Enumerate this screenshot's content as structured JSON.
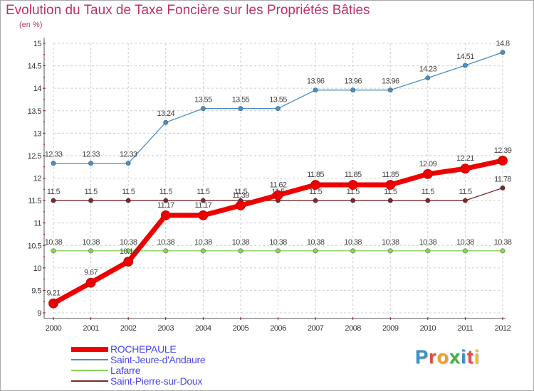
{
  "chart_data": {
    "type": "line",
    "title": "Evolution du Taux de Taxe Foncière sur les Propriétés Bâties",
    "subtitle": "(en %)",
    "categories": [
      "2000",
      "2001",
      "2002",
      "2003",
      "2004",
      "2005",
      "2006",
      "2007",
      "2008",
      "2009",
      "2010",
      "2011",
      "2012"
    ],
    "ylim": [
      9,
      15
    ],
    "yticks": [
      "9",
      "9.5",
      "10",
      "10.5",
      "11",
      "11.5",
      "12",
      "12.5",
      "13",
      "13.5",
      "14",
      "14.5",
      "15"
    ],
    "grid": true,
    "legend_position": "bottom",
    "series": [
      {
        "name": "ROCHEPAULE",
        "color": "#ee0000",
        "emphasis": true,
        "values": [
          9.21,
          9.67,
          10.14,
          11.17,
          11.17,
          11.39,
          11.62,
          11.85,
          11.85,
          11.85,
          12.09,
          12.21,
          12.39
        ],
        "labels": [
          "9.21",
          "9.67",
          "10.14",
          "11.17",
          "11.17",
          "11.39",
          "11.62",
          "11.85",
          "11.85",
          "11.85",
          "12.09",
          "12.21",
          "12.39"
        ]
      },
      {
        "name": "Saint-Jeure-d'Andaure",
        "color": "#4a8ec4",
        "emphasis": false,
        "values": [
          12.33,
          12.33,
          12.33,
          13.24,
          13.55,
          13.55,
          13.55,
          13.96,
          13.96,
          13.96,
          14.23,
          14.51,
          14.8
        ],
        "labels": [
          "12.33",
          "12.33",
          "12.33",
          "13.24",
          "13.55",
          "13.55",
          "13.55",
          "13.96",
          "13.96",
          "13.96",
          "14.23",
          "14.51",
          "14.8"
        ]
      },
      {
        "name": "Lafarre",
        "color": "#88d45a",
        "emphasis": false,
        "values": [
          10.38,
          10.38,
          10.38,
          10.38,
          10.38,
          10.38,
          10.38,
          10.38,
          10.38,
          10.38,
          10.38,
          10.38,
          10.38
        ],
        "labels": [
          "10.38",
          "10.38",
          "10.38",
          "10.38",
          "10.38",
          "10.38",
          "10.38",
          "10.38",
          "10.38",
          "10.38",
          "10.38",
          "10.38",
          "10.38"
        ]
      },
      {
        "name": "Saint-Pierre-sur-Doux",
        "color": "#7a2a2a",
        "emphasis": false,
        "values": [
          11.5,
          11.5,
          11.5,
          11.5,
          11.5,
          11.5,
          11.5,
          11.5,
          11.5,
          11.5,
          11.5,
          11.5,
          11.78
        ],
        "labels": [
          "11.5",
          "11.5",
          "11.5",
          "11.5",
          "11.5",
          "11.5",
          "11.5",
          "11.5",
          "11.5",
          "11.5",
          "11.5",
          "11.5",
          "11.78"
        ]
      }
    ]
  },
  "logo": {
    "text": "Proxiti",
    "letters": [
      {
        "char": "P",
        "color": "#3a8fd0"
      },
      {
        "char": "r",
        "color": "#e84c3d"
      },
      {
        "char": "o",
        "color": "#f0a020"
      },
      {
        "char": "x",
        "color": "#45b045"
      },
      {
        "char": "i",
        "color": "#3a8fd0"
      },
      {
        "char": "t",
        "color": "#e84c3d"
      },
      {
        "char": "i",
        "color": "#f0c020"
      }
    ]
  }
}
